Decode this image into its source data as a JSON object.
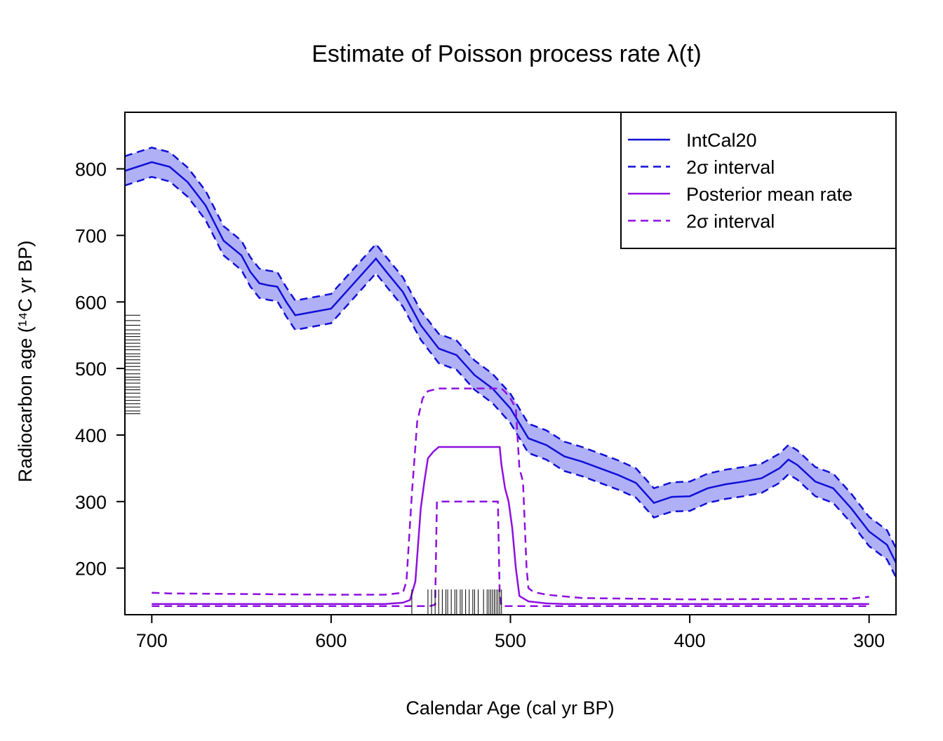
{
  "chart_data": {
    "type": "line",
    "title": "Estimate of Poisson process rate λ(t)",
    "xlabel": "Calendar Age (cal yr BP)",
    "ylabel": "Radiocarbon age (¹⁴C yr BP)",
    "xlim": [
      715,
      285
    ],
    "ylim": [
      130,
      885
    ],
    "x_ticks": [
      700,
      600,
      500,
      400,
      300
    ],
    "y_ticks": [
      200,
      300,
      400,
      500,
      600,
      700,
      800
    ],
    "grid": false,
    "legend_position": "top-right",
    "colors": {
      "intcal": "#1010d8",
      "intcal_band": "#b0b0f6",
      "rate": "#8e10e0"
    },
    "legend": [
      {
        "label": "IntCal20",
        "style": "solid",
        "color": "#1010d8"
      },
      {
        "label": "2σ interval",
        "style": "dashed",
        "color": "#1010d8"
      },
      {
        "label": "Posterior mean rate",
        "style": "solid",
        "color": "#8e10e0"
      },
      {
        "label": "2σ interval",
        "style": "dashed",
        "color": "#8e10e0"
      }
    ],
    "series": [
      {
        "name": "IntCal20",
        "x": [
          715,
          700,
          690,
          680,
          670,
          660,
          650,
          645,
          640,
          635,
          630,
          625,
          620,
          610,
          600,
          590,
          580,
          575,
          570,
          560,
          550,
          540,
          530,
          520,
          510,
          500,
          490,
          480,
          470,
          460,
          450,
          440,
          430,
          420,
          410,
          400,
          390,
          380,
          370,
          360,
          350,
          345,
          340,
          330,
          320,
          310,
          300,
          290,
          285
        ],
        "y": [
          797,
          810,
          803,
          780,
          745,
          692,
          670,
          645,
          628,
          625,
          623,
          600,
          580,
          585,
          590,
          620,
          650,
          665,
          648,
          615,
          565,
          530,
          520,
          490,
          470,
          440,
          395,
          385,
          368,
          360,
          350,
          340,
          328,
          298,
          307,
          308,
          320,
          326,
          330,
          335,
          350,
          363,
          355,
          330,
          320,
          290,
          255,
          235,
          208
        ]
      },
      {
        "name": "IntCal20 2σ upper",
        "x": [
          715,
          700,
          690,
          680,
          670,
          660,
          650,
          645,
          640,
          635,
          630,
          625,
          620,
          610,
          600,
          590,
          580,
          575,
          570,
          560,
          550,
          540,
          530,
          520,
          510,
          500,
          490,
          480,
          470,
          460,
          450,
          440,
          430,
          420,
          410,
          400,
          390,
          380,
          370,
          360,
          350,
          345,
          340,
          330,
          320,
          310,
          300,
          290,
          285
        ],
        "y": [
          819,
          832,
          825,
          802,
          767,
          714,
          692,
          667,
          650,
          647,
          645,
          622,
          602,
          607,
          612,
          642,
          672,
          687,
          670,
          637,
          587,
          552,
          542,
          512,
          492,
          462,
          417,
          407,
          390,
          382,
          372,
          362,
          350,
          320,
          329,
          330,
          342,
          348,
          352,
          357,
          372,
          385,
          377,
          352,
          342,
          312,
          277,
          257,
          230
        ]
      },
      {
        "name": "IntCal20 2σ lower",
        "x": [
          715,
          700,
          690,
          680,
          670,
          660,
          650,
          645,
          640,
          635,
          630,
          625,
          620,
          610,
          600,
          590,
          580,
          575,
          570,
          560,
          550,
          540,
          530,
          520,
          510,
          500,
          490,
          480,
          470,
          460,
          450,
          440,
          430,
          420,
          410,
          400,
          390,
          380,
          370,
          360,
          350,
          345,
          340,
          330,
          320,
          310,
          300,
          290,
          285
        ],
        "y": [
          775,
          788,
          781,
          758,
          723,
          670,
          648,
          623,
          606,
          603,
          601,
          578,
          558,
          563,
          568,
          598,
          628,
          643,
          626,
          593,
          543,
          508,
          498,
          468,
          448,
          418,
          373,
          363,
          346,
          338,
          328,
          318,
          306,
          276,
          285,
          286,
          298,
          304,
          308,
          313,
          328,
          341,
          333,
          308,
          298,
          268,
          233,
          213,
          186
        ]
      },
      {
        "name": "Posterior mean rate",
        "x": [
          700,
          600,
          570,
          560,
          556,
          553,
          550,
          548,
          546,
          543,
          540,
          530,
          520,
          510,
          506,
          505,
          503,
          501,
          499,
          497,
          495,
          490,
          480,
          470,
          400,
          300
        ],
        "y": [
          146,
          146,
          146,
          148,
          152,
          180,
          290,
          330,
          365,
          375,
          382,
          382,
          382,
          382,
          382,
          355,
          320,
          300,
          260,
          200,
          158,
          150,
          147,
          146,
          146,
          146
        ]
      },
      {
        "name": "Posterior 2σ upper",
        "x": [
          700,
          690,
          600,
          570,
          560,
          558,
          555,
          552,
          549,
          546,
          543,
          540,
          530,
          520,
          510,
          505,
          503,
          500,
          497,
          495,
          493,
          491,
          490,
          488,
          485,
          480,
          460,
          400,
          310,
          300
        ],
        "y": [
          163,
          162,
          160,
          160,
          163,
          180,
          310,
          420,
          455,
          466,
          468,
          470,
          470,
          470,
          470,
          470,
          465,
          455,
          440,
          350,
          330,
          200,
          170,
          166,
          163,
          160,
          155,
          153,
          154,
          157
        ]
      },
      {
        "name": "Posterior 2σ lower",
        "x": [
          700,
          600,
          550,
          545,
          542,
          541,
          540,
          530,
          520,
          510,
          507,
          506,
          505,
          400,
          300
        ],
        "y": [
          143,
          143,
          143,
          143,
          145,
          300,
          300,
          300,
          300,
          300,
          300,
          160,
          143,
          143,
          143
        ]
      }
    ],
    "rug_x": [
      555,
      546,
      544,
      542,
      540,
      538,
      536,
      535,
      533,
      531,
      530,
      528,
      527,
      525,
      523,
      521,
      520,
      518,
      515,
      513,
      512,
      511,
      510,
      509,
      508,
      507,
      506,
      505
    ],
    "rug_y": [
      580,
      572,
      565,
      558,
      552,
      548,
      543,
      538,
      533,
      528,
      522,
      518,
      513,
      508,
      503,
      498,
      492,
      487,
      483,
      478,
      472,
      468,
      463,
      457,
      452,
      447,
      442,
      436,
      432
    ]
  }
}
